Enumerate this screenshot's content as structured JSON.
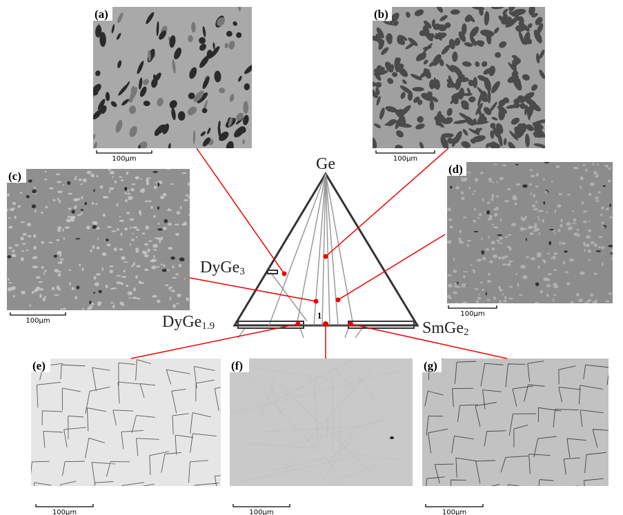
{
  "panels": [
    {
      "label": "(a)",
      "scale": "100μm"
    },
    {
      "label": "(b)",
      "scale": "100μm"
    },
    {
      "label": "(c)",
      "scale": "100μm"
    },
    {
      "label": "(d)",
      "scale": "100μm"
    },
    {
      "label": "(e)",
      "scale": "100μm"
    },
    {
      "label": "(f)",
      "scale": "100μm"
    },
    {
      "label": "(g)",
      "scale": "100μm"
    }
  ],
  "diagram": {
    "apex": "Ge",
    "upper_left": {
      "base": "DyGe",
      "sub": "3"
    },
    "left": {
      "base": "DyGe",
      "sub": "1.9"
    },
    "right": {
      "base": "SmGe",
      "sub": "2"
    },
    "point": "1"
  }
}
